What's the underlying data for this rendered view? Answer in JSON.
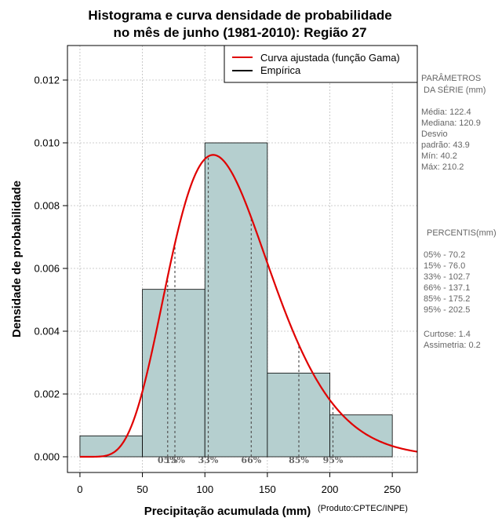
{
  "chart_data": {
    "type": "bar",
    "title_line1": "Histograma e curva densidade de probabilidade",
    "title_line2": "no mês de junho (1981-2010): Região 27",
    "xlabel": "Precipitação acumulada (mm)",
    "ylabel": "Densidade de probabilidade",
    "credit": "(Produto:CPTEC/INPE)",
    "xlim": [
      -10,
      270
    ],
    "ylim": [
      -0.0005,
      0.0131
    ],
    "x_ticks": [
      0,
      50,
      100,
      150,
      200,
      250
    ],
    "x_tick_labels": [
      "0",
      "50",
      "100",
      "150",
      "200",
      "250"
    ],
    "y_ticks": [
      0.0,
      0.002,
      0.004,
      0.006,
      0.008,
      0.01,
      0.012
    ],
    "y_tick_labels": [
      "0.000",
      "0.002",
      "0.004",
      "0.006",
      "0.008",
      "0.010",
      "0.012"
    ],
    "grid": true,
    "bins": [
      {
        "from": 0,
        "to": 50,
        "density": 0.000667
      },
      {
        "from": 50,
        "to": 100,
        "density": 0.005333
      },
      {
        "from": 100,
        "to": 150,
        "density": 0.01
      },
      {
        "from": 150,
        "to": 200,
        "density": 0.002667
      },
      {
        "from": 200,
        "to": 250,
        "density": 0.001333
      }
    ],
    "bar_color": "#b5cfcf",
    "curve": {
      "name": "Curva ajustada (função Gama)",
      "color": "#e00000",
      "shape": 7.77,
      "scale": 15.75,
      "x_range": [
        0,
        270
      ]
    },
    "legend": [
      {
        "label": "Curva ajustada (função Gama)",
        "color": "#e00000"
      },
      {
        "label": "Empírica",
        "color": "#000000"
      }
    ],
    "legend_position": "top-right",
    "percentile_marks": [
      {
        "label": "05%",
        "value": 70.2
      },
      {
        "label": "15%",
        "value": 76.0
      },
      {
        "label": "33%",
        "value": 102.7
      },
      {
        "label": "66%",
        "value": 137.1
      },
      {
        "label": "85%",
        "value": 175.2
      },
      {
        "label": "95%",
        "value": 202.5
      }
    ]
  },
  "stats_panel": {
    "params_title_line1": "PARÂMETROS",
    "params_title_line2": "DA SÉRIE (mm)",
    "media": "Média:  122.4",
    "mediana": "Mediana:  120.9",
    "desvio": "Desvio",
    "padrao": "padrão:  43.9",
    "min": "Mín:  40.2",
    "max": "Máx:  210.2",
    "percentis_title": "PERCENTIS(mm)",
    "p05": "05% -  70.2",
    "p15": "15% -  76.0",
    "p33": "33% -  102.7",
    "p66": "66% -  137.1",
    "p85": "85% -  175.2",
    "p95": "95% -  202.5",
    "curtose": "Curtose:  1.4",
    "assimetria": "Assimetria:  0.2"
  }
}
